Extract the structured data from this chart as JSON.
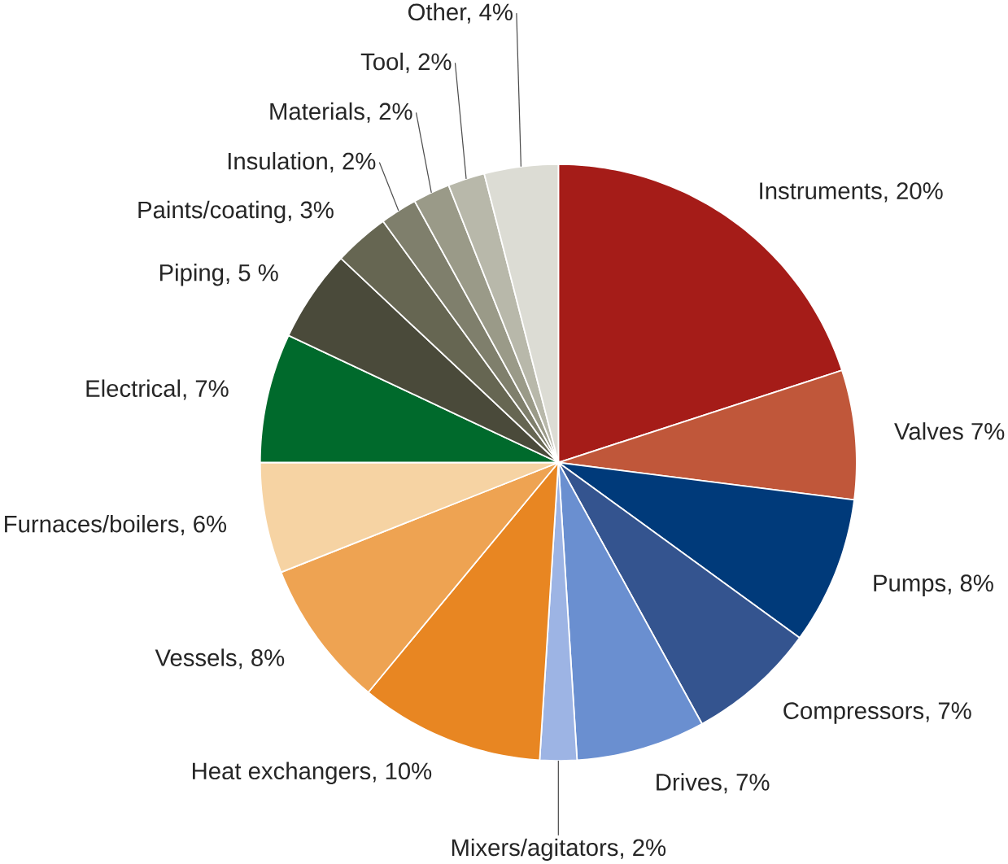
{
  "chart_data": {
    "type": "pie",
    "categories": [
      "Instruments, 20%",
      "Valves 7%",
      "Pumps, 8%",
      "Compressors, 7%",
      "Drives, 7%",
      "Mixers/agitators, 2%",
      "Heat exchangers, 10%",
      "Vessels, 8%",
      "Furnaces/boilers, 6%",
      "Electrical, 7%",
      "Piping, 5 %",
      "Paints/coating, 3%",
      "Insulation, 2%",
      "Materials, 2%",
      "Tool, 2%",
      "Other, 4%"
    ],
    "values": [
      20,
      7,
      8,
      7,
      7,
      2,
      10,
      8,
      6,
      7,
      5,
      3,
      2,
      2,
      2,
      4
    ],
    "colors": [
      "#a51c18",
      "#c0573a",
      "#003a7a",
      "#34548f",
      "#6a8fd0",
      "#9db4e4",
      "#e88622",
      "#eea352",
      "#f6d3a3",
      "#006a2c",
      "#4a4a3a",
      "#666652",
      "#7f7f6c",
      "#9a9a88",
      "#b8b8aa",
      "#dcdcd4"
    ]
  }
}
